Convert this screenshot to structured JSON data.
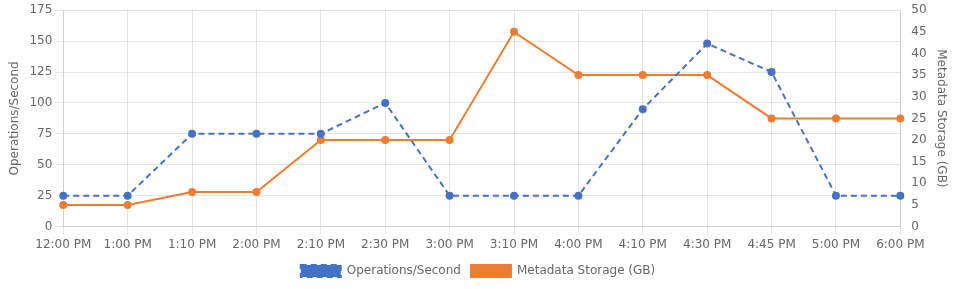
{
  "chart_data": {
    "type": "line",
    "categories": [
      "12:00 PM",
      "1:00 PM",
      "1:10 PM",
      "2:00 PM",
      "2:10 PM",
      "2:30 PM",
      "3:00 PM",
      "3:10 PM",
      "4:00 PM",
      "4:10 PM",
      "4:30 PM",
      "4:45 PM",
      "5:00 PM",
      "6:00 PM"
    ],
    "series": [
      {
        "name": "Operations/Second",
        "color": "#4472C4",
        "line_style": "dashed",
        "marker": "circle",
        "values": [
          25,
          25,
          75,
          75,
          75,
          100,
          25,
          25,
          25,
          95,
          148,
          125,
          25,
          25
        ]
      },
      {
        "name": "Metadata Storage (GB)",
        "color": "#ED7D31",
        "line_style": "solid",
        "marker": "circle",
        "axis": "y2",
        "values": [
          5,
          5,
          8,
          8,
          20,
          20,
          20,
          45,
          35,
          35,
          35,
          25,
          25,
          25
        ]
      }
    ],
    "ylabel": "Operations/Second",
    "y2label": "Metadata Storage (GB)",
    "ylim": [
      0,
      175
    ],
    "yticks": [
      0,
      25,
      50,
      75,
      100,
      125,
      150,
      175
    ],
    "y2lim": [
      0,
      50
    ],
    "y2ticks": [
      0,
      5,
      10,
      15,
      20,
      25,
      30,
      35,
      40,
      45,
      50
    ],
    "grid": true,
    "legend": "bottom"
  }
}
